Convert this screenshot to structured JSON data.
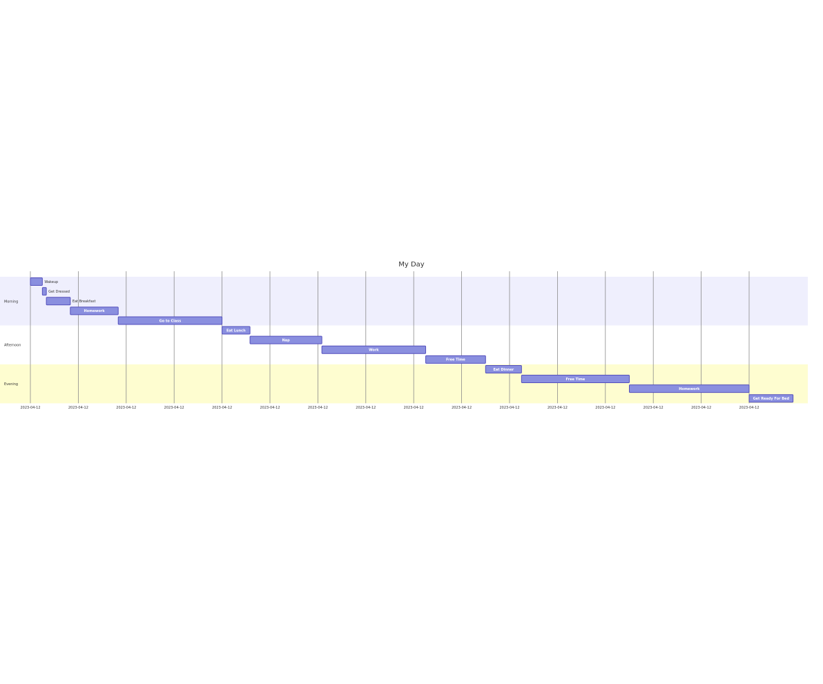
{
  "chart_data": {
    "type": "gantt",
    "title": "My Day",
    "date": "2023-04-12",
    "tick_format": "YYYY-MM-DD",
    "x_range_hours": [
      8,
      24
    ],
    "tick_hours": [
      8,
      9,
      10,
      11,
      12,
      13,
      14,
      15,
      16,
      17,
      18,
      19,
      20,
      21,
      22,
      23
    ],
    "sections": [
      {
        "name": "Morning",
        "color": "#efeffd",
        "tasks": [
          {
            "name": "Wakeup",
            "start": "08:00",
            "end": "08:15"
          },
          {
            "name": "Get Dressed",
            "start": "08:15",
            "end": "08:20"
          },
          {
            "name": "Eat Breakfast",
            "start": "08:20",
            "end": "08:50"
          },
          {
            "name": "Homework",
            "start": "08:50",
            "end": "09:50"
          },
          {
            "name": "Go to Class",
            "start": "09:50",
            "end": "12:00"
          }
        ]
      },
      {
        "name": "Afternoon",
        "color": "#ffffff",
        "tasks": [
          {
            "name": "Eat Lunch",
            "start": "12:00",
            "end": "12:35"
          },
          {
            "name": "Nap",
            "start": "12:35",
            "end": "14:05"
          },
          {
            "name": "Work",
            "start": "14:05",
            "end": "16:15"
          },
          {
            "name": "Free Time",
            "start": "16:15",
            "end": "17:30"
          }
        ]
      },
      {
        "name": "Evening",
        "color": "#fefdd0",
        "tasks": [
          {
            "name": "Eat Dinner",
            "start": "17:30",
            "end": "18:15"
          },
          {
            "name": "Free Time",
            "start": "18:15",
            "end": "20:30"
          },
          {
            "name": "Homework",
            "start": "20:30",
            "end": "23:00"
          },
          {
            "name": "Get Ready For Bed",
            "start": "23:00",
            "end": "23:55"
          }
        ]
      }
    ],
    "bar_color": "#8a8fdf",
    "bar_border_color": "#534fbc",
    "grid_color": "#8a8a8a"
  }
}
